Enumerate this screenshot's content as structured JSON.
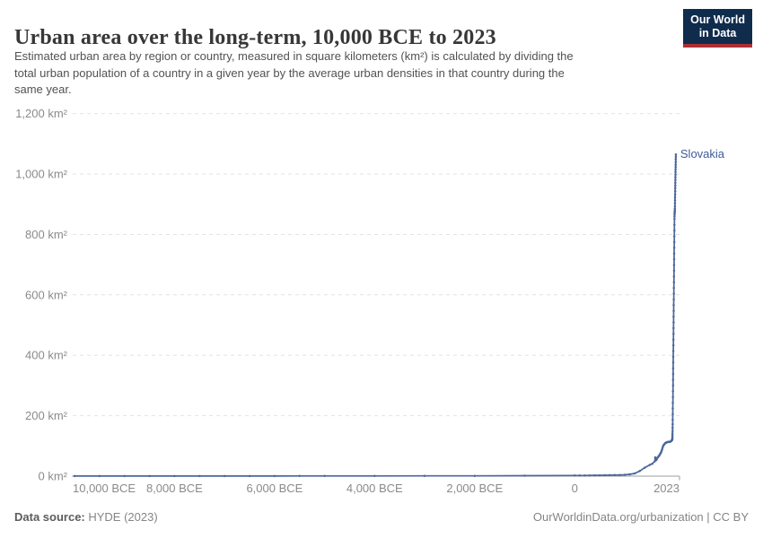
{
  "header": {
    "title": "Urban area over the long-term, 10,000 BCE to 2023",
    "subtitle_lines": [
      "Estimated urban area by region or country, measured in square kilometers (km²) is calculated by dividing the",
      "total urban population of a country in a given year by the average urban densities in that country during the",
      "same year."
    ],
    "logo": {
      "line1": "Our World",
      "line2": "in Data",
      "bg": "#102c4d",
      "accent": "#ac2f33"
    }
  },
  "footer": {
    "source_label": "Data source:",
    "source_value": " HYDE (2023)",
    "credit": "OurWorldinData.org/urbanization | CC BY"
  },
  "chart_data": {
    "type": "line",
    "title": "Urban area over the long-term, 10,000 BCE to 2023",
    "unit": "km²",
    "grid": "horizontal-dashed",
    "legend_position": "end-of-line-label",
    "xlim": [
      -10000,
      2060
    ],
    "ylim": [
      0,
      1200
    ],
    "yticks": [
      0,
      200,
      400,
      600,
      800,
      1000,
      1200
    ],
    "ytick_labels": [
      "0 km²",
      "200 km²",
      "400 km²",
      "600 km²",
      "800 km²",
      "1,000 km²",
      "1,200 km²"
    ],
    "xticks": [
      -10000,
      -8000,
      -6000,
      -4000,
      -2000,
      0,
      2023
    ],
    "xtick_labels": [
      "10,000 BCE",
      "8,000 BCE",
      "6,000 BCE",
      "4,000 BCE",
      "2,000 BCE",
      "0",
      "2023"
    ],
    "line_color": "#4c669b",
    "label_color": "#3d5b99",
    "series": [
      {
        "name": "Slovakia",
        "points": [
          [
            -10000,
            0.2
          ],
          [
            -9500,
            0.2
          ],
          [
            -9000,
            0.25
          ],
          [
            -8500,
            0.25
          ],
          [
            -8000,
            0.3
          ],
          [
            -7500,
            0.3
          ],
          [
            -7000,
            0.35
          ],
          [
            -6500,
            0.35
          ],
          [
            -6000,
            0.4
          ],
          [
            -5500,
            0.45
          ],
          [
            -5000,
            0.5
          ],
          [
            -4000,
            0.6
          ],
          [
            -3000,
            0.8
          ],
          [
            -2000,
            1
          ],
          [
            -1000,
            1.4
          ],
          [
            0,
            2
          ],
          [
            100,
            2.1
          ],
          [
            200,
            2.2
          ],
          [
            300,
            2.4
          ],
          [
            400,
            2.6
          ],
          [
            500,
            2.8
          ],
          [
            600,
            3
          ],
          [
            700,
            3.3
          ],
          [
            800,
            3.6
          ],
          [
            900,
            4
          ],
          [
            1000,
            4.5
          ],
          [
            1100,
            6
          ],
          [
            1200,
            9
          ],
          [
            1300,
            17
          ],
          [
            1400,
            28
          ],
          [
            1500,
            37
          ],
          [
            1550,
            41
          ],
          [
            1600,
            49
          ],
          [
            1610,
            62
          ],
          [
            1620,
            56
          ],
          [
            1630,
            53
          ],
          [
            1640,
            56
          ],
          [
            1650,
            60
          ],
          [
            1660,
            62
          ],
          [
            1670,
            64
          ],
          [
            1680,
            66
          ],
          [
            1690,
            68
          ],
          [
            1700,
            71
          ],
          [
            1710,
            74
          ],
          [
            1720,
            77
          ],
          [
            1730,
            80
          ],
          [
            1740,
            85
          ],
          [
            1750,
            90
          ],
          [
            1760,
            96
          ],
          [
            1770,
            100
          ],
          [
            1780,
            103
          ],
          [
            1790,
            105
          ],
          [
            1800,
            107
          ],
          [
            1810,
            109
          ],
          [
            1820,
            110
          ],
          [
            1830,
            111
          ],
          [
            1840,
            112
          ],
          [
            1850,
            112
          ],
          [
            1860,
            113
          ],
          [
            1870,
            113
          ],
          [
            1880,
            114
          ],
          [
            1890,
            113
          ],
          [
            1900,
            114
          ],
          [
            1910,
            114
          ],
          [
            1920,
            115
          ],
          [
            1930,
            116
          ],
          [
            1940,
            119
          ],
          [
            1950,
            120
          ],
          [
            1951,
            122
          ],
          [
            1952,
            124
          ],
          [
            1953,
            127
          ],
          [
            1954,
            131
          ],
          [
            1955,
            136
          ],
          [
            1956,
            142
          ],
          [
            1957,
            150
          ],
          [
            1958,
            160
          ],
          [
            1959,
            172
          ],
          [
            1960,
            186
          ],
          [
            1961,
            205
          ],
          [
            1962,
            224
          ],
          [
            1963,
            243
          ],
          [
            1964,
            262
          ],
          [
            1965,
            281
          ],
          [
            1966,
            300
          ],
          [
            1967,
            319
          ],
          [
            1968,
            338
          ],
          [
            1969,
            357
          ],
          [
            1970,
            376
          ],
          [
            1971,
            395
          ],
          [
            1972,
            414
          ],
          [
            1973,
            433
          ],
          [
            1974,
            452
          ],
          [
            1975,
            471
          ],
          [
            1976,
            490
          ],
          [
            1977,
            509
          ],
          [
            1978,
            528
          ],
          [
            1979,
            547
          ],
          [
            1980,
            566
          ],
          [
            1981,
            585
          ],
          [
            1982,
            604
          ],
          [
            1983,
            623
          ],
          [
            1984,
            642
          ],
          [
            1985,
            661
          ],
          [
            1986,
            680
          ],
          [
            1987,
            699
          ],
          [
            1988,
            718
          ],
          [
            1989,
            737
          ],
          [
            1990,
            756
          ],
          [
            1991,
            775
          ],
          [
            1992,
            794
          ],
          [
            1993,
            813
          ],
          [
            1994,
            832
          ],
          [
            1995,
            851
          ],
          [
            1996,
            860
          ],
          [
            1997,
            866
          ],
          [
            1998,
            870
          ],
          [
            1999,
            873
          ],
          [
            2000,
            875
          ],
          [
            2001,
            877
          ],
          [
            2002,
            880
          ],
          [
            2003,
            885
          ],
          [
            2004,
            893
          ],
          [
            2005,
            903
          ],
          [
            2006,
            913
          ],
          [
            2007,
            923
          ],
          [
            2008,
            933
          ],
          [
            2009,
            943
          ],
          [
            2010,
            953
          ],
          [
            2011,
            962
          ],
          [
            2012,
            971
          ],
          [
            2013,
            980
          ],
          [
            2014,
            989
          ],
          [
            2015,
            998
          ],
          [
            2016,
            1007
          ],
          [
            2017,
            1015
          ],
          [
            2018,
            1023
          ],
          [
            2019,
            1031
          ],
          [
            2020,
            1040
          ],
          [
            2021,
            1049
          ],
          [
            2022,
            1057
          ],
          [
            2023,
            1065
          ]
        ]
      }
    ]
  }
}
